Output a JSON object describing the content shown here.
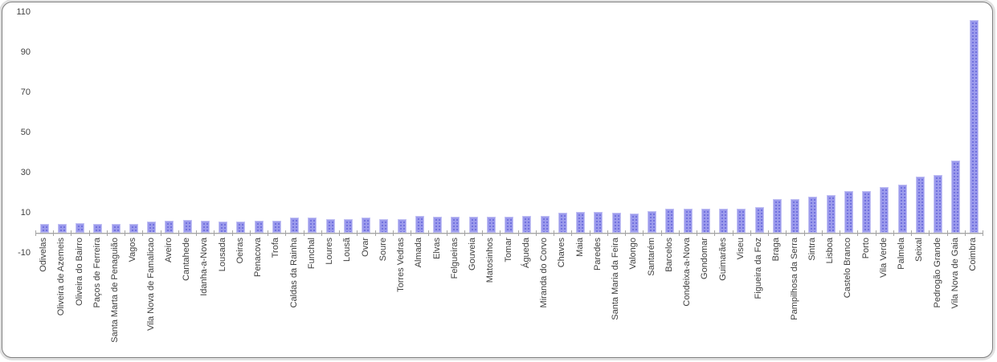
{
  "chart_data": {
    "type": "bar",
    "title": "",
    "xlabel": "",
    "ylabel": "",
    "categories": [
      "Odivelas",
      "Oliveira de Azemeis",
      "Oliveira do Bairro",
      "Paços de Ferreira",
      "Santa Marta de Penaguião",
      "Vagos",
      "Vila Nova de Famalicao",
      "Aveiro",
      "Cantahede",
      "Idanha-a-Nova",
      "Lousada",
      "Oeiras",
      "Penacova",
      "Trofa",
      "Caldas da Rainha",
      "Funchal",
      "Loures",
      "Lousã",
      "Ovar",
      "Soure",
      "Torres Vedras",
      "Almada",
      "Elvas",
      "Felgueiras",
      "Gouveia",
      "Matosinhos",
      "Tomar",
      "Águeda",
      "Miranda do Corvo",
      "Chaves",
      "Maia",
      "Paredes",
      "Santa Maria da Feira",
      "Valongo",
      "Santarém",
      "Barcelos",
      "Condeixa-a-Nova",
      "Gondomar",
      "Guimarães",
      "Viseu",
      "Figueira da Foz",
      "Braga",
      "Pampilhosa da Serra",
      "Sintra",
      "Lisboa",
      "Castelo Branco",
      "Porto",
      "Vila Verde",
      "Palmela",
      "Seixal",
      "Pedrogão Grande",
      "Vila Nova de Gaia",
      "Coimbra"
    ],
    "values": [
      4.5,
      4.5,
      5,
      4.5,
      4.5,
      4.5,
      5.5,
      6,
      6.5,
      6,
      5.5,
      5.5,
      6,
      6,
      7.5,
      7.5,
      7,
      7,
      7.5,
      7,
      7,
      8.5,
      8,
      8,
      8,
      8,
      8,
      8.5,
      8.5,
      10,
      10.5,
      10.5,
      10,
      9.5,
      11,
      12,
      12,
      12,
      12,
      12,
      13,
      17,
      17,
      18,
      19,
      21,
      21,
      23,
      24,
      28,
      29,
      36,
      106
    ],
    "ylim": [
      -10,
      110
    ],
    "yticks": [
      110,
      90,
      70,
      50,
      30,
      10,
      -10
    ],
    "grid": false,
    "legend_position": "none",
    "bar_fill_color": "#9b9aec",
    "bar_dot_color": "#6465d9",
    "bar_border_color": "#c3c2f4",
    "axis_color": "#a6a6a6",
    "label_text_color": "#3f3f3f"
  }
}
